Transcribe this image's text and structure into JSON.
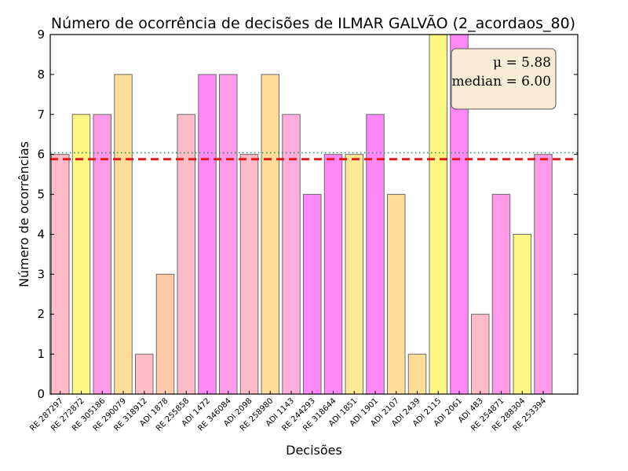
{
  "chart_data": {
    "type": "bar",
    "title": "Número de ocorrência de decisões de ILMAR GALVÃO (2_acordaos_80)",
    "xlabel": "Decisões",
    "ylabel": "Número de ocorrências",
    "ylim": [
      0,
      9
    ],
    "yticks": [
      "0",
      "1",
      "2",
      "3",
      "4",
      "5",
      "6",
      "7",
      "8",
      "9"
    ],
    "categories": [
      "RE 287297",
      "RE 272872",
      "RE 305186",
      "RE 290079",
      "RE 318912",
      "ADI 1878",
      "RE 255858",
      "ADI 1472",
      "RE 346084",
      "ADI 2098",
      "RE 258980",
      "ADI 1143",
      "RE 244293",
      "RE 318644",
      "ADI 1851",
      "ADI 1901",
      "ADI 2107",
      "ADI 2439",
      "ADI 2115",
      "ADI 2061",
      "ADI 483",
      "RE 254871",
      "RE 288304",
      "RE 253394"
    ],
    "values": [
      6,
      7,
      7,
      8,
      1,
      3,
      7,
      8,
      8,
      6,
      8,
      7,
      5,
      6,
      6,
      7,
      5,
      1,
      9,
      9,
      2,
      5,
      4,
      6
    ],
    "colors": [
      "#ffbbc6",
      "#fff683",
      "#ff9ae8",
      "#ffdd99",
      "#ffbbc6",
      "#ffc9aa",
      "#ffbbc6",
      "#ff88f8",
      "#ff9ae8",
      "#ffbbc6",
      "#ffdd99",
      "#ffaedb",
      "#ff88f8",
      "#ff88f8",
      "#ffe895",
      "#ff88f8",
      "#ffdd99",
      "#ffdd99",
      "#fff683",
      "#ff88f8",
      "#ffbbc6",
      "#ff9ae8",
      "#fff683",
      "#ff9ae8"
    ],
    "mean": 5.88,
    "median": 6.0,
    "mean_line_color": "#e8161b",
    "median_line_color": "#2e8b57",
    "stats_box": {
      "mean_text": "μ = 5.88",
      "median_text": "median = 6.00",
      "placement": "top-right"
    },
    "grid": false
  }
}
